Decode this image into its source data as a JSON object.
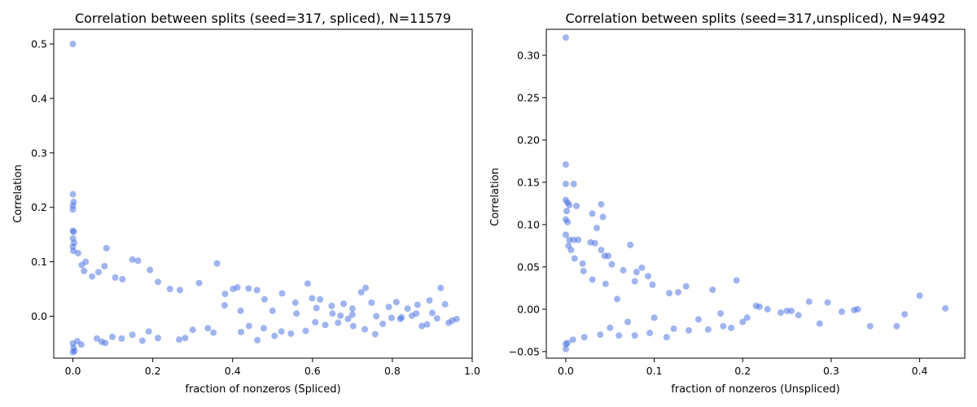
{
  "chart_data": [
    {
      "type": "scatter",
      "title": "Correlation between splits (seed=317, spliced), N=11579",
      "xlabel": "fraction of nonzeros (Spliced)",
      "ylabel": "Correlation",
      "xlim": [
        -0.048,
        1.0
      ],
      "ylim": [
        -0.077,
        0.527
      ],
      "xticks": [
        0.0,
        0.2,
        0.4,
        0.6,
        0.8,
        1.0
      ],
      "xtick_labels": [
        "0.0",
        "0.2",
        "0.4",
        "0.6",
        "0.8",
        "1.0"
      ],
      "yticks": [
        0.0,
        0.1,
        0.2,
        0.3,
        0.4,
        0.5
      ],
      "ytick_labels": [
        "0.0",
        "0.1",
        "0.2",
        "0.3",
        "0.4",
        "0.5"
      ],
      "marker_color": "#4169e1",
      "marker_alpha": 0.5,
      "grid": false,
      "points": [
        [
          0.0,
          0.5
        ],
        [
          0.0,
          0.224
        ],
        [
          0.002,
          0.21
        ],
        [
          0.0,
          0.203
        ],
        [
          0.0,
          0.196
        ],
        [
          0.0,
          0.157
        ],
        [
          0.002,
          0.155
        ],
        [
          0.0,
          0.143
        ],
        [
          0.003,
          0.135
        ],
        [
          0.0,
          0.128
        ],
        [
          0.001,
          0.12
        ],
        [
          0.013,
          0.116
        ],
        [
          0.032,
          0.1
        ],
        [
          0.022,
          0.094
        ],
        [
          0.028,
          0.083
        ],
        [
          0.084,
          0.125
        ],
        [
          0.149,
          0.104
        ],
        [
          0.163,
          0.102
        ],
        [
          0.193,
          0.085
        ],
        [
          0.079,
          0.092
        ],
        [
          0.064,
          0.081
        ],
        [
          0.048,
          0.073
        ],
        [
          0.106,
          0.071
        ],
        [
          0.124,
          0.068
        ],
        [
          0.213,
          0.063
        ],
        [
          0.243,
          0.05
        ],
        [
          0.268,
          0.048
        ],
        [
          0.316,
          0.061
        ],
        [
          0.361,
          0.097
        ],
        [
          0.381,
          0.041
        ],
        [
          0.401,
          0.05
        ],
        [
          0.412,
          0.053
        ],
        [
          0.44,
          0.051
        ],
        [
          0.461,
          0.048
        ],
        [
          0.48,
          0.031
        ],
        [
          0.524,
          0.042
        ],
        [
          0.557,
          0.025
        ],
        [
          0.588,
          0.06
        ],
        [
          0.599,
          0.033
        ],
        [
          0.619,
          0.031
        ],
        [
          0.648,
          0.019
        ],
        [
          0.678,
          0.023
        ],
        [
          0.7,
          0.014
        ],
        [
          0.722,
          0.044
        ],
        [
          0.733,
          0.052
        ],
        [
          0.748,
          0.025
        ],
        [
          0.791,
          0.017
        ],
        [
          0.81,
          0.026
        ],
        [
          0.838,
          0.014
        ],
        [
          0.863,
          0.021
        ],
        [
          0.893,
          0.029
        ],
        [
          0.921,
          0.052
        ],
        [
          0.932,
          0.022
        ],
        [
          0.961,
          -0.005
        ],
        [
          0.941,
          -0.012
        ],
        [
          0.912,
          -0.004
        ],
        [
          0.887,
          -0.015
        ],
        [
          0.874,
          -0.018
        ],
        [
          0.849,
          0.001
        ],
        [
          0.823,
          -0.002
        ],
        [
          0.798,
          -0.003
        ],
        [
          0.776,
          -0.014
        ],
        [
          0.757,
          -0.033
        ],
        [
          0.731,
          -0.024
        ],
        [
          0.702,
          -0.018
        ],
        [
          0.689,
          -0.005
        ],
        [
          0.664,
          -0.012
        ],
        [
          0.632,
          -0.016
        ],
        [
          0.607,
          -0.011
        ],
        [
          0.583,
          -0.027
        ],
        [
          0.546,
          -0.032
        ],
        [
          0.522,
          -0.028
        ],
        [
          0.505,
          -0.036
        ],
        [
          0.478,
          -0.022
        ],
        [
          0.462,
          -0.044
        ],
        [
          0.441,
          -0.018
        ],
        [
          0.421,
          -0.029
        ],
        [
          0.352,
          -0.03
        ],
        [
          0.338,
          -0.022
        ],
        [
          0.281,
          -0.04
        ],
        [
          0.266,
          -0.043
        ],
        [
          0.213,
          -0.04
        ],
        [
          0.174,
          -0.045
        ],
        [
          0.149,
          -0.034
        ],
        [
          0.122,
          -0.041
        ],
        [
          0.081,
          -0.049
        ],
        [
          0.072,
          -0.047
        ],
        [
          0.06,
          -0.041
        ],
        [
          0.021,
          -0.052
        ],
        [
          0.004,
          -0.064
        ],
        [
          0.0,
          -0.066
        ],
        [
          0.002,
          -0.058
        ],
        [
          0.011,
          -0.046
        ],
        [
          0.0,
          -0.05
        ],
        [
          0.099,
          -0.038
        ],
        [
          0.19,
          -0.028
        ],
        [
          0.3,
          -0.025
        ],
        [
          0.38,
          0.02
        ],
        [
          0.42,
          0.01
        ],
        [
          0.5,
          0.01
        ],
        [
          0.56,
          0.005
        ],
        [
          0.61,
          0.015
        ],
        [
          0.65,
          0.005
        ],
        [
          0.7,
          0.003
        ],
        [
          0.76,
          0.0
        ],
        [
          0.82,
          -0.005
        ],
        [
          0.86,
          0.005
        ],
        [
          0.9,
          0.006
        ],
        [
          0.95,
          -0.008
        ],
        [
          0.67,
          0.001
        ]
      ]
    },
    {
      "type": "scatter",
      "title": "Correlation between splits (seed=317,unspliced), N=9492",
      "xlabel": "fraction of nonzeros (Unspliced)",
      "ylabel": "Correlation",
      "xlim": [
        -0.022,
        0.451
      ],
      "ylim": [
        -0.0578,
        0.3307
      ],
      "xticks": [
        0.0,
        0.1,
        0.2,
        0.3,
        0.4
      ],
      "xtick_labels": [
        "0.0",
        "0.1",
        "0.2",
        "0.3",
        "0.4"
      ],
      "yticks": [
        -0.05,
        0.0,
        0.05,
        0.1,
        0.15,
        0.2,
        0.25,
        0.3
      ],
      "ytick_labels": [
        "−0.05",
        "0.00",
        "0.05",
        "0.10",
        "0.15",
        "0.20",
        "0.25",
        "0.30"
      ],
      "marker_color": "#4169e1",
      "marker_alpha": 0.5,
      "grid": false,
      "points": [
        [
          0.0,
          0.321
        ],
        [
          0.0,
          0.171
        ],
        [
          0.0,
          0.148
        ],
        [
          0.009,
          0.148
        ],
        [
          0.0,
          0.129
        ],
        [
          0.002,
          0.126
        ],
        [
          0.004,
          0.123
        ],
        [
          0.012,
          0.122
        ],
        [
          0.04,
          0.124
        ],
        [
          0.03,
          0.113
        ],
        [
          0.042,
          0.109
        ],
        [
          0.001,
          0.116
        ],
        [
          0.0,
          0.106
        ],
        [
          0.002,
          0.103
        ],
        [
          0.035,
          0.096
        ],
        [
          0.0,
          0.088
        ],
        [
          0.004,
          0.082
        ],
        [
          0.009,
          0.082
        ],
        [
          0.014,
          0.082
        ],
        [
          0.028,
          0.079
        ],
        [
          0.033,
          0.078
        ],
        [
          0.073,
          0.076
        ],
        [
          0.04,
          0.07
        ],
        [
          0.044,
          0.063
        ],
        [
          0.048,
          0.063
        ],
        [
          0.019,
          0.054
        ],
        [
          0.052,
          0.053
        ],
        [
          0.065,
          0.046
        ],
        [
          0.08,
          0.044
        ],
        [
          0.086,
          0.049
        ],
        [
          0.093,
          0.039
        ],
        [
          0.078,
          0.033
        ],
        [
          0.098,
          0.029
        ],
        [
          0.117,
          0.019
        ],
        [
          0.127,
          0.02
        ],
        [
          0.136,
          0.027
        ],
        [
          0.166,
          0.023
        ],
        [
          0.193,
          0.034
        ],
        [
          0.228,
          0.0
        ],
        [
          0.255,
          -0.002
        ],
        [
          0.275,
          0.009
        ],
        [
          0.296,
          0.008
        ],
        [
          0.312,
          -0.003
        ],
        [
          0.326,
          -0.001
        ],
        [
          0.344,
          -0.02
        ],
        [
          0.374,
          -0.02
        ],
        [
          0.383,
          -0.006
        ],
        [
          0.4,
          0.016
        ],
        [
          0.429,
          0.001
        ],
        [
          0.287,
          -0.017
        ],
        [
          0.263,
          -0.007
        ],
        [
          0.243,
          -0.004
        ],
        [
          0.219,
          0.003
        ],
        [
          0.205,
          -0.01
        ],
        [
          0.2,
          -0.015
        ],
        [
          0.187,
          -0.022
        ],
        [
          0.178,
          -0.02
        ],
        [
          0.161,
          -0.024
        ],
        [
          0.139,
          -0.025
        ],
        [
          0.122,
          -0.023
        ],
        [
          0.114,
          -0.033
        ],
        [
          0.095,
          -0.028
        ],
        [
          0.078,
          -0.031
        ],
        [
          0.06,
          -0.031
        ],
        [
          0.039,
          -0.03
        ],
        [
          0.021,
          -0.033
        ],
        [
          0.008,
          -0.036
        ],
        [
          0.0,
          -0.041
        ],
        [
          0.0,
          -0.047
        ],
        [
          0.002,
          -0.04
        ],
        [
          0.05,
          -0.022
        ],
        [
          0.07,
          -0.015
        ],
        [
          0.1,
          -0.01
        ],
        [
          0.15,
          -0.012
        ],
        [
          0.175,
          -0.005
        ],
        [
          0.25,
          -0.002
        ],
        [
          0.33,
          0.0
        ],
        [
          0.215,
          0.004
        ],
        [
          0.058,
          0.012
        ],
        [
          0.03,
          0.035
        ],
        [
          0.02,
          0.045
        ],
        [
          0.01,
          0.06
        ],
        [
          0.006,
          0.07
        ],
        [
          0.003,
          0.075
        ],
        [
          0.045,
          0.03
        ]
      ]
    }
  ]
}
